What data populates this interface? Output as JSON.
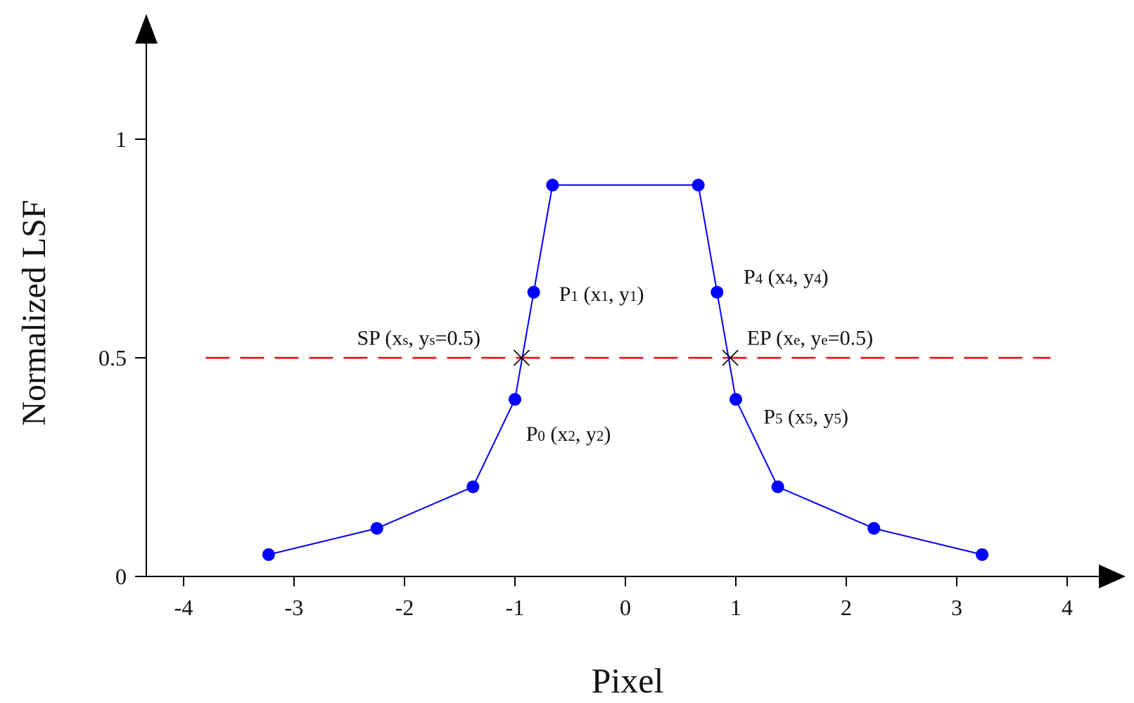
{
  "chart_data": {
    "type": "line",
    "title": "",
    "xlabel": "Pixel",
    "ylabel": "Normalized LSF",
    "xlim": [
      -4.4,
      4.4
    ],
    "ylim": [
      0,
      1.25
    ],
    "x_ticks": [
      -4,
      -3,
      -2,
      -1,
      0,
      1,
      2,
      3,
      4
    ],
    "x_tick_labels": [
      "-4",
      "-3",
      "-2",
      "-1",
      "0",
      "1",
      "2",
      "3",
      "4"
    ],
    "y_ticks": [
      0,
      0.5,
      1
    ],
    "y_tick_labels": [
      "0",
      "0.5",
      "1"
    ],
    "grid": false,
    "series": [
      {
        "color": "#0000ff",
        "marker": "circle",
        "x": [
          -3.23,
          -2.25,
          -1.38,
          -1.0,
          -0.83,
          -0.66,
          0.66,
          0.83,
          1.0,
          1.38,
          2.25,
          3.23
        ],
        "y": [
          0.05,
          0.11,
          0.205,
          0.405,
          0.65,
          0.895,
          0.895,
          0.65,
          0.405,
          0.205,
          0.11,
          0.05
        ]
      }
    ],
    "reference_lines": [
      {
        "y": 0.5,
        "x_range": [
          -3.8,
          3.85
        ],
        "color": "#ff0000",
        "style": "dashed"
      }
    ],
    "cross_markers": [
      {
        "x": -0.94,
        "y": 0.5
      },
      {
        "x": 0.95,
        "y": 0.5
      }
    ],
    "annotations": [
      {
        "id": "p1",
        "x": -0.6,
        "y": 0.63,
        "parts": [
          [
            "P",
            ""
          ],
          [
            "1",
            "sub"
          ],
          [
            " (x",
            ""
          ],
          [
            "1",
            "sub"
          ],
          [
            ", y",
            ""
          ],
          [
            "1",
            "sub"
          ],
          [
            ")",
            ""
          ]
        ]
      },
      {
        "id": "p4",
        "x": 1.07,
        "y": 0.67,
        "parts": [
          [
            "P",
            ""
          ],
          [
            "4",
            "sub"
          ],
          [
            " (x",
            ""
          ],
          [
            "4",
            "sub"
          ],
          [
            ", y",
            ""
          ],
          [
            "4",
            "sub"
          ],
          [
            ")",
            ""
          ]
        ]
      },
      {
        "id": "sp",
        "x": -2.43,
        "y": 0.53,
        "parts": [
          [
            "SP (x",
            ""
          ],
          [
            "s",
            "sub"
          ],
          [
            ", y",
            ""
          ],
          [
            "s",
            "sub"
          ],
          [
            "=0.5)",
            ""
          ]
        ]
      },
      {
        "id": "ep",
        "x": 1.1,
        "y": 0.53,
        "parts": [
          [
            "EP (x",
            ""
          ],
          [
            "e",
            "sub"
          ],
          [
            ", y",
            ""
          ],
          [
            "e",
            "sub"
          ],
          [
            "=0.5)",
            ""
          ]
        ]
      },
      {
        "id": "p0",
        "x": -0.9,
        "y": 0.31,
        "parts": [
          [
            "P",
            ""
          ],
          [
            "0",
            "sub"
          ],
          [
            " (x",
            ""
          ],
          [
            "2",
            "sub"
          ],
          [
            ", y",
            ""
          ],
          [
            "2",
            "sub"
          ],
          [
            ")",
            ""
          ]
        ]
      },
      {
        "id": "p5",
        "x": 1.25,
        "y": 0.35,
        "parts": [
          [
            "P",
            ""
          ],
          [
            "5",
            "sub"
          ],
          [
            " (x",
            ""
          ],
          [
            "5",
            "sub"
          ],
          [
            ", y",
            ""
          ],
          [
            "5",
            "sub"
          ],
          [
            ")",
            ""
          ]
        ]
      }
    ]
  }
}
